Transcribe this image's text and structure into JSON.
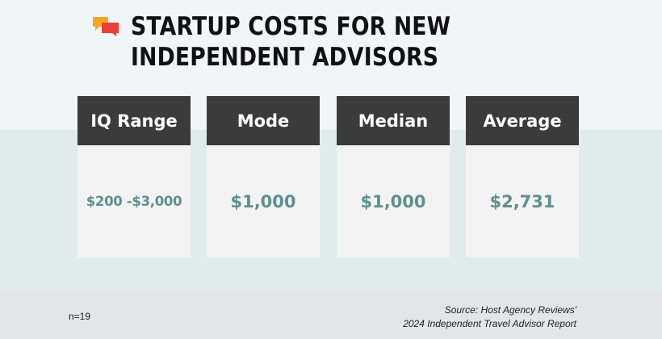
{
  "title": "STARTUP COSTS FOR NEW INDEPENDENT ADVISORS",
  "logo_icon": "chat-bubbles-icon",
  "colors": {
    "header_fill": "#3b3b3b",
    "value_text": "#5f8f8f",
    "logo_orange": "#f5a623",
    "logo_red": "#e8403a"
  },
  "cards": [
    {
      "label": "IQ Range",
      "value": "$200 -$3,000"
    },
    {
      "label": "Mode",
      "value": "$1,000"
    },
    {
      "label": "Median",
      "value": "$1,000"
    },
    {
      "label": "Average",
      "value": "$2,731"
    }
  ],
  "footer": {
    "sample_size": "n=19",
    "source_line1": "Source: Host Agency Reviews'",
    "source_line2": "2024 Independent Travel Advisor Report"
  }
}
